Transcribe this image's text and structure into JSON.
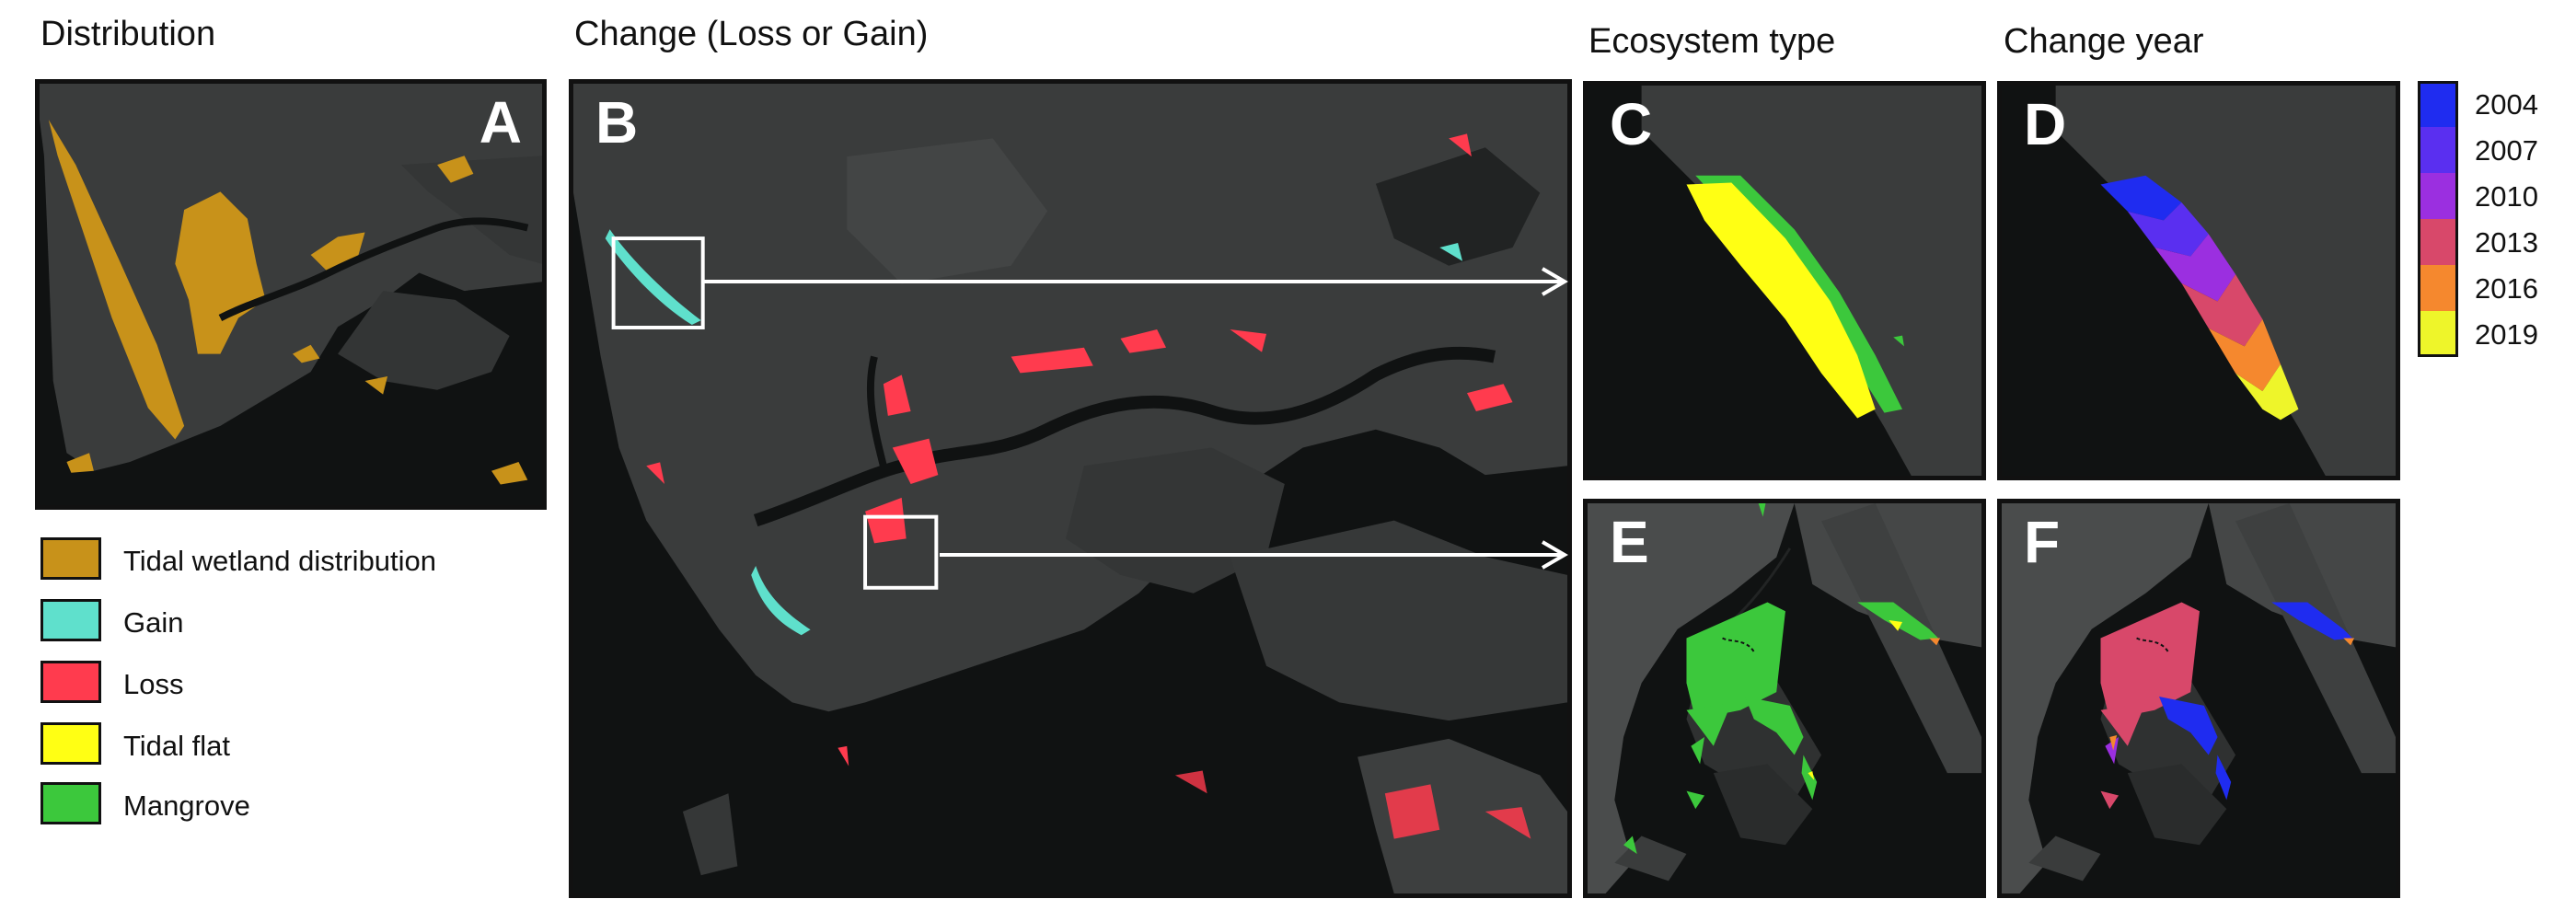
{
  "headings": {
    "distribution": "Distribution",
    "change": "Change (Loss or Gain)",
    "ecosystem": "Ecosystem type",
    "change_year": "Change year"
  },
  "panels": {
    "a": "A",
    "b": "B",
    "c": "C",
    "d": "D",
    "e": "E",
    "f": "F"
  },
  "legend": [
    {
      "label": "Tidal wetland distribution",
      "color": "#c8921a"
    },
    {
      "label": "Gain",
      "color": "#5fe0cc"
    },
    {
      "label": "Loss",
      "color": "#ff3b4e"
    },
    {
      "label": "Tidal flat",
      "color": "#ffff14"
    },
    {
      "label": "Mangrove",
      "color": "#3cc83c"
    }
  ],
  "year_legend": [
    {
      "label": "2004",
      "color": "#1f2cf0"
    },
    {
      "label": "2007",
      "color": "#5a2ff0"
    },
    {
      "label": "2010",
      "color": "#9b2fe0"
    },
    {
      "label": "2013",
      "color": "#d8486a"
    },
    {
      "label": "2016",
      "color": "#f5882e"
    },
    {
      "label": "2019",
      "color": "#eef52a"
    }
  ],
  "colors": {
    "land": "#3a3c3c",
    "water": "#101212",
    "frame": "#111111"
  }
}
